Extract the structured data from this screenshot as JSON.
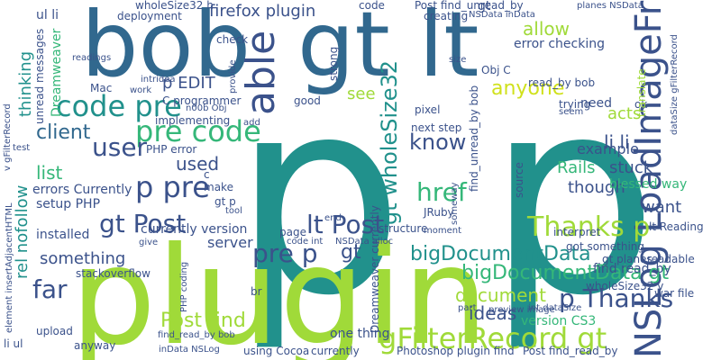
{
  "palette": {
    "purple": "#440154",
    "indigo": "#3b528b",
    "blue": "#31688e",
    "teal": "#21918c",
    "green": "#35b779",
    "lime": "#a0da39",
    "yellow": "#d0e11c",
    "navy": "#2c3e8a"
  },
  "words": {
    "w_p": "p",
    "w_plugin": "plugin",
    "w_bob": "bob",
    "w_gt_lt": "gt lt",
    "w_lt": "lt",
    "w_p2": "p",
    "w_code_pre": "code pre",
    "w_pre_code": "pre code",
    "w_user": "user",
    "w_client": "client",
    "w_p_pre": "p pre",
    "w_gt_post": "gt Post",
    "w_pre_p": "pre p",
    "w_lt_post": "lt Post",
    "w_href": "href",
    "w_know": "know",
    "w_thanks_p": "Thanks p",
    "w_p_thanks": "p Thanks",
    "w_gfilterrecord_gt": "gFilterRecord gt",
    "w_nslog": "NSLog LoadImageFromSDK",
    "w_bigdoc": "bigDocumentData",
    "w_bigdoc_gt": "bigDocumentData gt",
    "w_document": "document",
    "w_ideas": "ideas",
    "w_far": "far",
    "w_post_find": "Post find",
    "w_able": "able",
    "w_gt_wholesize32": "gt wholeSize32",
    "w_anyone": "anyone",
    "w_li_li": "li li",
    "w_allow": "allow",
    "w_firefox_plugin": "firefox plugin",
    "w_used": "used",
    "w_list": "list",
    "w_server": "server",
    "w_thinking": "thinking",
    "w_p_edit": "p EDIT",
    "w_see": "see",
    "w_rails": "Rails",
    "w_stuck": "stuck",
    "w_example": "example",
    "w_though": "though",
    "w_want": "want",
    "w_something": "something",
    "w_rel_nofollow": "rel nofollow",
    "w_setup_php": "setup PHP",
    "w_errors_currently": "errors Currently",
    "w_installed": "installed",
    "w_php_error": "PHP error",
    "w_currently_version": "currently version",
    "w_one_thing": "one thing",
    "w_version_cs3": "version CS3",
    "w_acts": "acts",
    "w_need": "need",
    "w_blessed_way": "blessed way",
    "w_lt_reading": "lt Reading",
    "w_got_something": "got something",
    "w_find_read_by": "find read_by",
    "w_gt_planes": "gt planes",
    "w_war_file": "war file",
    "w_wholesize32_v": "wholeSize32 v",
    "w_read_by_bob": "read_by bob",
    "w_find_unread_by_bob": "find_unread_by bob",
    "w_post_find_unread_by": "Post find_unread_by",
    "w_error_checking": "error checking",
    "w_wholesize32_h": "wholeSize32 h",
    "w_deployment": "deployment",
    "w_li_ul": "li ul",
    "w_ul_li": "ul li",
    "w_upload": "upload",
    "w_anyway": "anyway",
    "w_stackoverflow": "stackoverflow",
    "w_find_read_by_bob": "find_read_by bob",
    "w_using_cocoa": "using Cocoa",
    "w_currently": "currently",
    "w_photoshop_plugin_find": "Photoshop plugin find",
    "w_post_find_read_by": "Post find_read_by",
    "w_indata_nslog": "inData NSLog",
    "w_dreamweaver": "Dreamweaver",
    "w_dreamweaver_currently": "Dreamweaver currently",
    "w_nsdata_alloc": "NSData alloc",
    "w_code_int": "code int",
    "w_structure": "structure",
    "w_page": "page",
    "w_readable": "readable",
    "w_interpret": "interpret",
    "w_preview_image": "preview image",
    "w_part": "part",
    "w_int_datasize": "int dataSize",
    "w_jruby": "JRuby",
    "w_pixel": "pixel",
    "w_next_step": "next step",
    "w_source": "source",
    "w_trying": "trying",
    "w_seem": "seem",
    "w_ok": "ok",
    "w_size": "size",
    "w_creating": "creating",
    "w_nsdata_indata": "NSData inData",
    "w_planes_nsdata": "planes NSData",
    "w_translate": "translate",
    "w_datasize_gfilter": "dataSize gFilterRecord",
    "w_strong": "strong",
    "w_good": "good",
    "w_implementing": "implementing",
    "w_c_programmer": "C programmer",
    "w_work": "work",
    "w_n00b_obj": "n00b Obj",
    "w_provide": "provide",
    "w_check": "check",
    "w_intridea": "intridea",
    "w_mac": "Mac",
    "w_unread_messages": "unread messages",
    "w_readings": "readings",
    "w_gt_p": "gt p",
    "w_make": "make",
    "w_give": "give",
    "w_tool": "tool",
    "w_test": "test",
    "w_br": "br",
    "w_php_coding": "PHP coding",
    "w_element_insert": "element insertAdjacentHTML",
    "w_v_gfilterrecord": "v gFilterRecord",
    "w_add": "add",
    "w_c": "c",
    "w_end": "end",
    "w_moment": "moment",
    "w_someway": "someway",
    "w_obj_c": "Obj C",
    "w_code": "code",
    "w_gt_small": "gt",
    "w_gt_mid": "gt"
  }
}
